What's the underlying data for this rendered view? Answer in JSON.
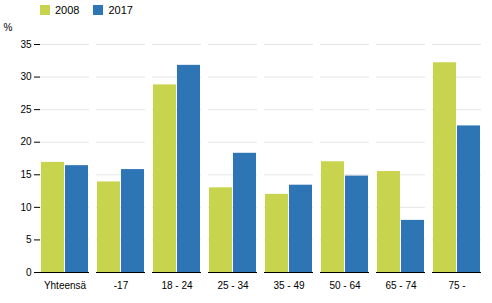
{
  "chart_data": {
    "type": "bar",
    "categories": [
      "Yhteensä",
      "-17",
      "18 - 24",
      "25 - 34",
      "35 - 49",
      "50 - 64",
      "65 - 74",
      "75 -"
    ],
    "series": [
      {
        "name": "2008",
        "color": "#c8d44e",
        "values": [
          16.9,
          13.9,
          28.8,
          13.0,
          12.0,
          17.0,
          15.5,
          32.2
        ]
      },
      {
        "name": "2017",
        "color": "#2e75b6",
        "values": [
          16.4,
          15.8,
          31.8,
          18.3,
          13.4,
          14.8,
          8.0,
          22.5
        ]
      }
    ],
    "ylabel": "%",
    "ylim": [
      0,
      35
    ],
    "yticks": [
      0,
      5,
      10,
      15,
      20,
      25,
      30,
      35
    ],
    "grid": true,
    "legend": "upper left"
  }
}
